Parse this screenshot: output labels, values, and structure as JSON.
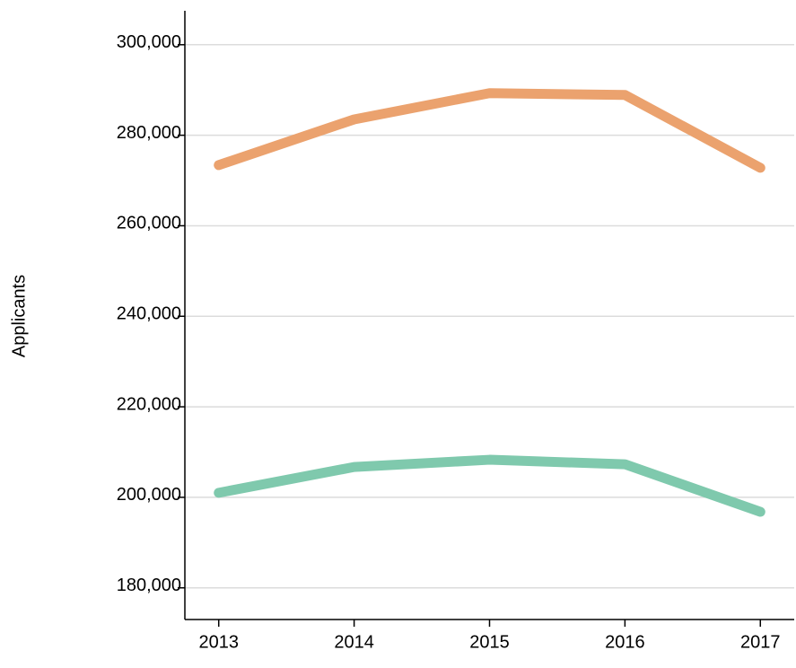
{
  "chart_data": {
    "type": "line",
    "y_label": "Applicants",
    "x": [
      2013,
      2014,
      2015,
      2016,
      2017
    ],
    "xlim": [
      2012.75,
      2017.25
    ],
    "xticks": [
      2013,
      2014,
      2015,
      2016,
      2017
    ],
    "ylim": [
      173000,
      307500
    ],
    "yticks": [
      {
        "value": 180000,
        "label": "180,000"
      },
      {
        "value": 200000,
        "label": "200,000"
      },
      {
        "value": 220000,
        "label": "220,000"
      },
      {
        "value": 240000,
        "label": "240,000"
      },
      {
        "value": 260000,
        "label": "260,000"
      },
      {
        "value": 280000,
        "label": "280,000"
      },
      {
        "value": 300000,
        "label": "300,000"
      }
    ],
    "grid": true,
    "series": [
      {
        "color": "#eba26e",
        "values": [
          273400,
          283500,
          289300,
          288900,
          272800
        ]
      },
      {
        "color": "#7fc9ad",
        "values": [
          201000,
          206700,
          208300,
          207300,
          196800
        ]
      }
    ]
  }
}
